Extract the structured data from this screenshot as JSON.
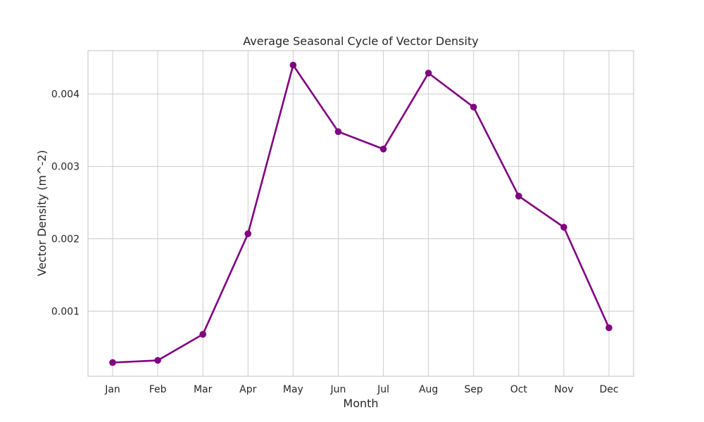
{
  "chart_data": {
    "type": "line",
    "title": "Average Seasonal Cycle of Vector Density",
    "xlabel": "Month",
    "ylabel": "Vector Density (m^-2)",
    "categories": [
      "Jan",
      "Feb",
      "Mar",
      "Apr",
      "May",
      "Jun",
      "Jul",
      "Aug",
      "Sep",
      "Oct",
      "Nov",
      "Dec"
    ],
    "series": [
      {
        "values": [
          0.00029,
          0.00032,
          0.00068,
          0.00207,
          0.0044,
          0.00348,
          0.00324,
          0.00429,
          0.00382,
          0.00259,
          0.00216,
          0.00077
        ]
      }
    ],
    "yticks": [
      0.001,
      0.002,
      0.003,
      0.004
    ],
    "ytick_labels": [
      "0.001",
      "0.002",
      "0.003",
      "0.004"
    ],
    "ylim": [
      0.0001,
      0.0046
    ],
    "grid": true,
    "line_color": "#800080",
    "grid_color": "#cccccc",
    "frame_color": "#cccccc"
  }
}
